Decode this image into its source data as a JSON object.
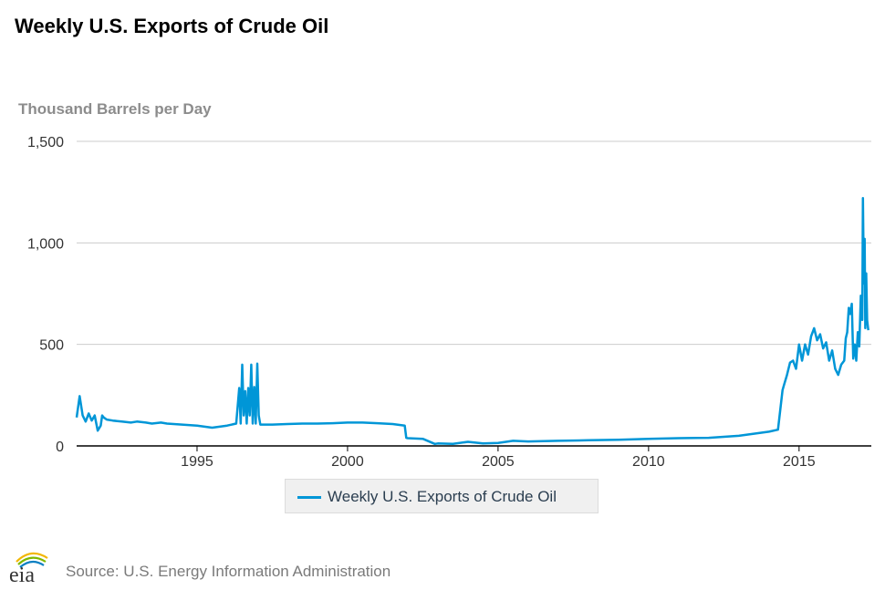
{
  "title": "Weekly U.S. Exports of Crude Oil",
  "source": "Source: U.S. Energy Information Administration",
  "logo_text": "eia",
  "colors": {
    "series": "#0096d7",
    "grid": "#cccccc",
    "axis": "#000000",
    "ytitle": "#8c8c8c"
  },
  "chart_data": {
    "type": "line",
    "title": "Weekly U.S. Exports of Crude Oil",
    "xlabel": "",
    "ylabel": "Thousand Barrels per Day",
    "xlim": [
      1991.0,
      2017.4
    ],
    "ylim": [
      0,
      1500
    ],
    "x_ticks": [
      1995,
      2000,
      2005,
      2010,
      2015
    ],
    "y_ticks": [
      0,
      500,
      1000,
      1500
    ],
    "y_tick_labels": [
      "0",
      "500",
      "1,000",
      "1,500"
    ],
    "grid": true,
    "legend_position": "bottom-center",
    "series": [
      {
        "name": "Weekly U.S. Exports of Crude Oil",
        "x": [
          1991.0,
          1991.1,
          1991.2,
          1991.3,
          1991.4,
          1991.5,
          1991.6,
          1991.7,
          1991.8,
          1991.85,
          1991.9,
          1992.0,
          1992.2,
          1992.5,
          1992.8,
          1993.0,
          1993.3,
          1993.5,
          1993.8,
          1994.0,
          1994.5,
          1995.0,
          1995.5,
          1996.0,
          1996.3,
          1996.4,
          1996.45,
          1996.5,
          1996.55,
          1996.6,
          1996.65,
          1996.7,
          1996.75,
          1996.8,
          1996.85,
          1996.9,
          1996.95,
          1997.0,
          1997.05,
          1997.1,
          1997.2,
          1997.5,
          1998.0,
          1998.5,
          1999.0,
          1999.5,
          2000.0,
          2000.5,
          2001.0,
          2001.5,
          2001.9,
          2001.95,
          2002.0,
          2002.5,
          2002.9,
          2003.0,
          2003.5,
          2004.0,
          2004.5,
          2005.0,
          2005.5,
          2006.0,
          2007.0,
          2008.0,
          2009.0,
          2010.0,
          2011.0,
          2012.0,
          2013.0,
          2014.0,
          2014.3,
          2014.45,
          2014.5,
          2014.6,
          2014.7,
          2014.8,
          2014.9,
          2015.0,
          2015.1,
          2015.2,
          2015.3,
          2015.4,
          2015.5,
          2015.6,
          2015.7,
          2015.8,
          2015.9,
          2016.0,
          2016.1,
          2016.2,
          2016.3,
          2016.4,
          2016.5,
          2016.55,
          2016.6,
          2016.65,
          2016.7,
          2016.75,
          2016.8,
          2016.85,
          2016.9,
          2016.95,
          2017.0,
          2017.05,
          2017.1,
          2017.12,
          2017.15,
          2017.18,
          2017.2,
          2017.23,
          2017.26,
          2017.3
        ],
        "values": [
          140,
          245,
          150,
          120,
          160,
          125,
          150,
          75,
          100,
          150,
          140,
          130,
          125,
          120,
          115,
          120,
          115,
          110,
          115,
          110,
          105,
          100,
          90,
          100,
          110,
          285,
          110,
          400,
          150,
          270,
          110,
          285,
          150,
          400,
          110,
          290,
          110,
          405,
          150,
          105,
          105,
          105,
          108,
          110,
          110,
          112,
          115,
          115,
          112,
          108,
          100,
          40,
          38,
          35,
          10,
          12,
          10,
          20,
          12,
          15,
          25,
          22,
          25,
          28,
          30,
          35,
          38,
          40,
          50,
          70,
          80,
          275,
          300,
          350,
          410,
          420,
          380,
          500,
          420,
          500,
          450,
          540,
          580,
          520,
          550,
          480,
          510,
          420,
          470,
          380,
          350,
          400,
          420,
          530,
          560,
          680,
          650,
          700,
          430,
          500,
          420,
          560,
          490,
          740,
          620,
          1220,
          800,
          1020,
          580,
          850,
          620,
          570
        ]
      }
    ]
  }
}
